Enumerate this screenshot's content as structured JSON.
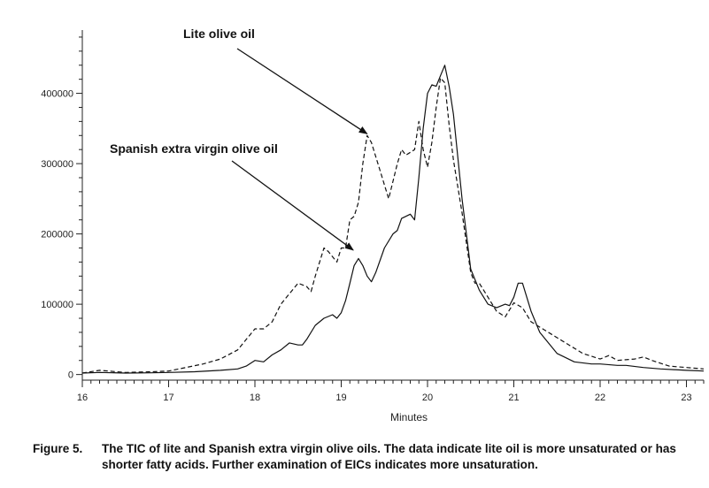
{
  "chart_data": {
    "type": "line",
    "xlabel": "Minutes",
    "ylabel": "",
    "title": "",
    "xlim": [
      16,
      23.2
    ],
    "ylim": [
      -8000,
      490000
    ],
    "x_ticks": [
      16,
      17,
      18,
      19,
      20,
      21,
      22,
      23
    ],
    "y_ticks": [
      0,
      100000,
      200000,
      300000,
      400000
    ],
    "grid": false,
    "annotations": [
      {
        "text": "Lite olive oil",
        "target": [
          19.32,
          345000
        ]
      },
      {
        "text": "Spanish extra virgin olive oil",
        "target": [
          19.18,
          172000
        ]
      }
    ],
    "series": [
      {
        "name": "Lite olive oil",
        "style": "dashed",
        "x": [
          16.0,
          16.2,
          16.5,
          16.8,
          17.0,
          17.2,
          17.4,
          17.6,
          17.8,
          17.9,
          18.0,
          18.1,
          18.2,
          18.3,
          18.4,
          18.5,
          18.6,
          18.65,
          18.7,
          18.8,
          18.85,
          18.95,
          19.0,
          19.05,
          19.1,
          19.15,
          19.2,
          19.25,
          19.3,
          19.35,
          19.45,
          19.55,
          19.65,
          19.7,
          19.75,
          19.85,
          19.9,
          19.95,
          20.0,
          20.05,
          20.1,
          20.15,
          20.2,
          20.25,
          20.3,
          20.4,
          20.5,
          20.55,
          20.6,
          20.7,
          20.8,
          20.9,
          21.0,
          21.1,
          21.2,
          21.4,
          21.6,
          21.8,
          22.0,
          22.1,
          22.2,
          22.4,
          22.5,
          22.6,
          22.8,
          23.0,
          23.2
        ],
        "values": [
          2000,
          6000,
          3000,
          4000,
          5000,
          10000,
          15000,
          22000,
          35000,
          50000,
          65000,
          65000,
          75000,
          100000,
          115000,
          130000,
          125000,
          118000,
          140000,
          180000,
          175000,
          160000,
          180000,
          180000,
          220000,
          225000,
          245000,
          300000,
          340000,
          330000,
          290000,
          250000,
          300000,
          320000,
          312000,
          320000,
          360000,
          320000,
          295000,
          330000,
          380000,
          422000,
          415000,
          355000,
          305000,
          230000,
          145000,
          130000,
          130000,
          110000,
          90000,
          82000,
          102000,
          95000,
          75000,
          60000,
          45000,
          30000,
          22000,
          27000,
          20000,
          22000,
          25000,
          20000,
          12000,
          10000,
          8000
        ]
      },
      {
        "name": "Spanish extra virgin olive oil",
        "style": "solid",
        "x": [
          16.0,
          16.2,
          16.5,
          16.8,
          17.0,
          17.3,
          17.6,
          17.8,
          17.9,
          18.0,
          18.1,
          18.2,
          18.3,
          18.4,
          18.5,
          18.55,
          18.6,
          18.7,
          18.8,
          18.9,
          18.95,
          19.0,
          19.05,
          19.1,
          19.15,
          19.2,
          19.25,
          19.3,
          19.35,
          19.4,
          19.5,
          19.6,
          19.65,
          19.7,
          19.8,
          19.85,
          19.9,
          19.95,
          20.0,
          20.05,
          20.1,
          20.15,
          20.2,
          20.25,
          20.3,
          20.4,
          20.5,
          20.6,
          20.7,
          20.8,
          20.9,
          20.95,
          21.0,
          21.05,
          21.1,
          21.2,
          21.3,
          21.5,
          21.7,
          21.9,
          22.0,
          22.2,
          22.3,
          22.5,
          22.7,
          23.0,
          23.2
        ],
        "values": [
          2000,
          3000,
          2000,
          2500,
          3000,
          4000,
          6000,
          8000,
          12000,
          20000,
          18000,
          28000,
          35000,
          45000,
          42000,
          42000,
          50000,
          70000,
          80000,
          85000,
          80000,
          88000,
          105000,
          130000,
          155000,
          165000,
          155000,
          140000,
          132000,
          145000,
          180000,
          200000,
          205000,
          222000,
          228000,
          220000,
          280000,
          350000,
          400000,
          412000,
          410000,
          425000,
          440000,
          410000,
          370000,
          250000,
          150000,
          120000,
          100000,
          95000,
          100000,
          98000,
          110000,
          130000,
          130000,
          90000,
          60000,
          30000,
          18000,
          15000,
          15000,
          13000,
          13000,
          10000,
          8000,
          6000,
          5000
        ]
      }
    ]
  },
  "caption": {
    "label": "Figure 5.",
    "text": "The TIC of lite and Spanish extra virgin olive oils. The data indicate lite oil is more unsaturated or has shorter fatty acids. Further examination of EICs indicates more unsaturation."
  }
}
